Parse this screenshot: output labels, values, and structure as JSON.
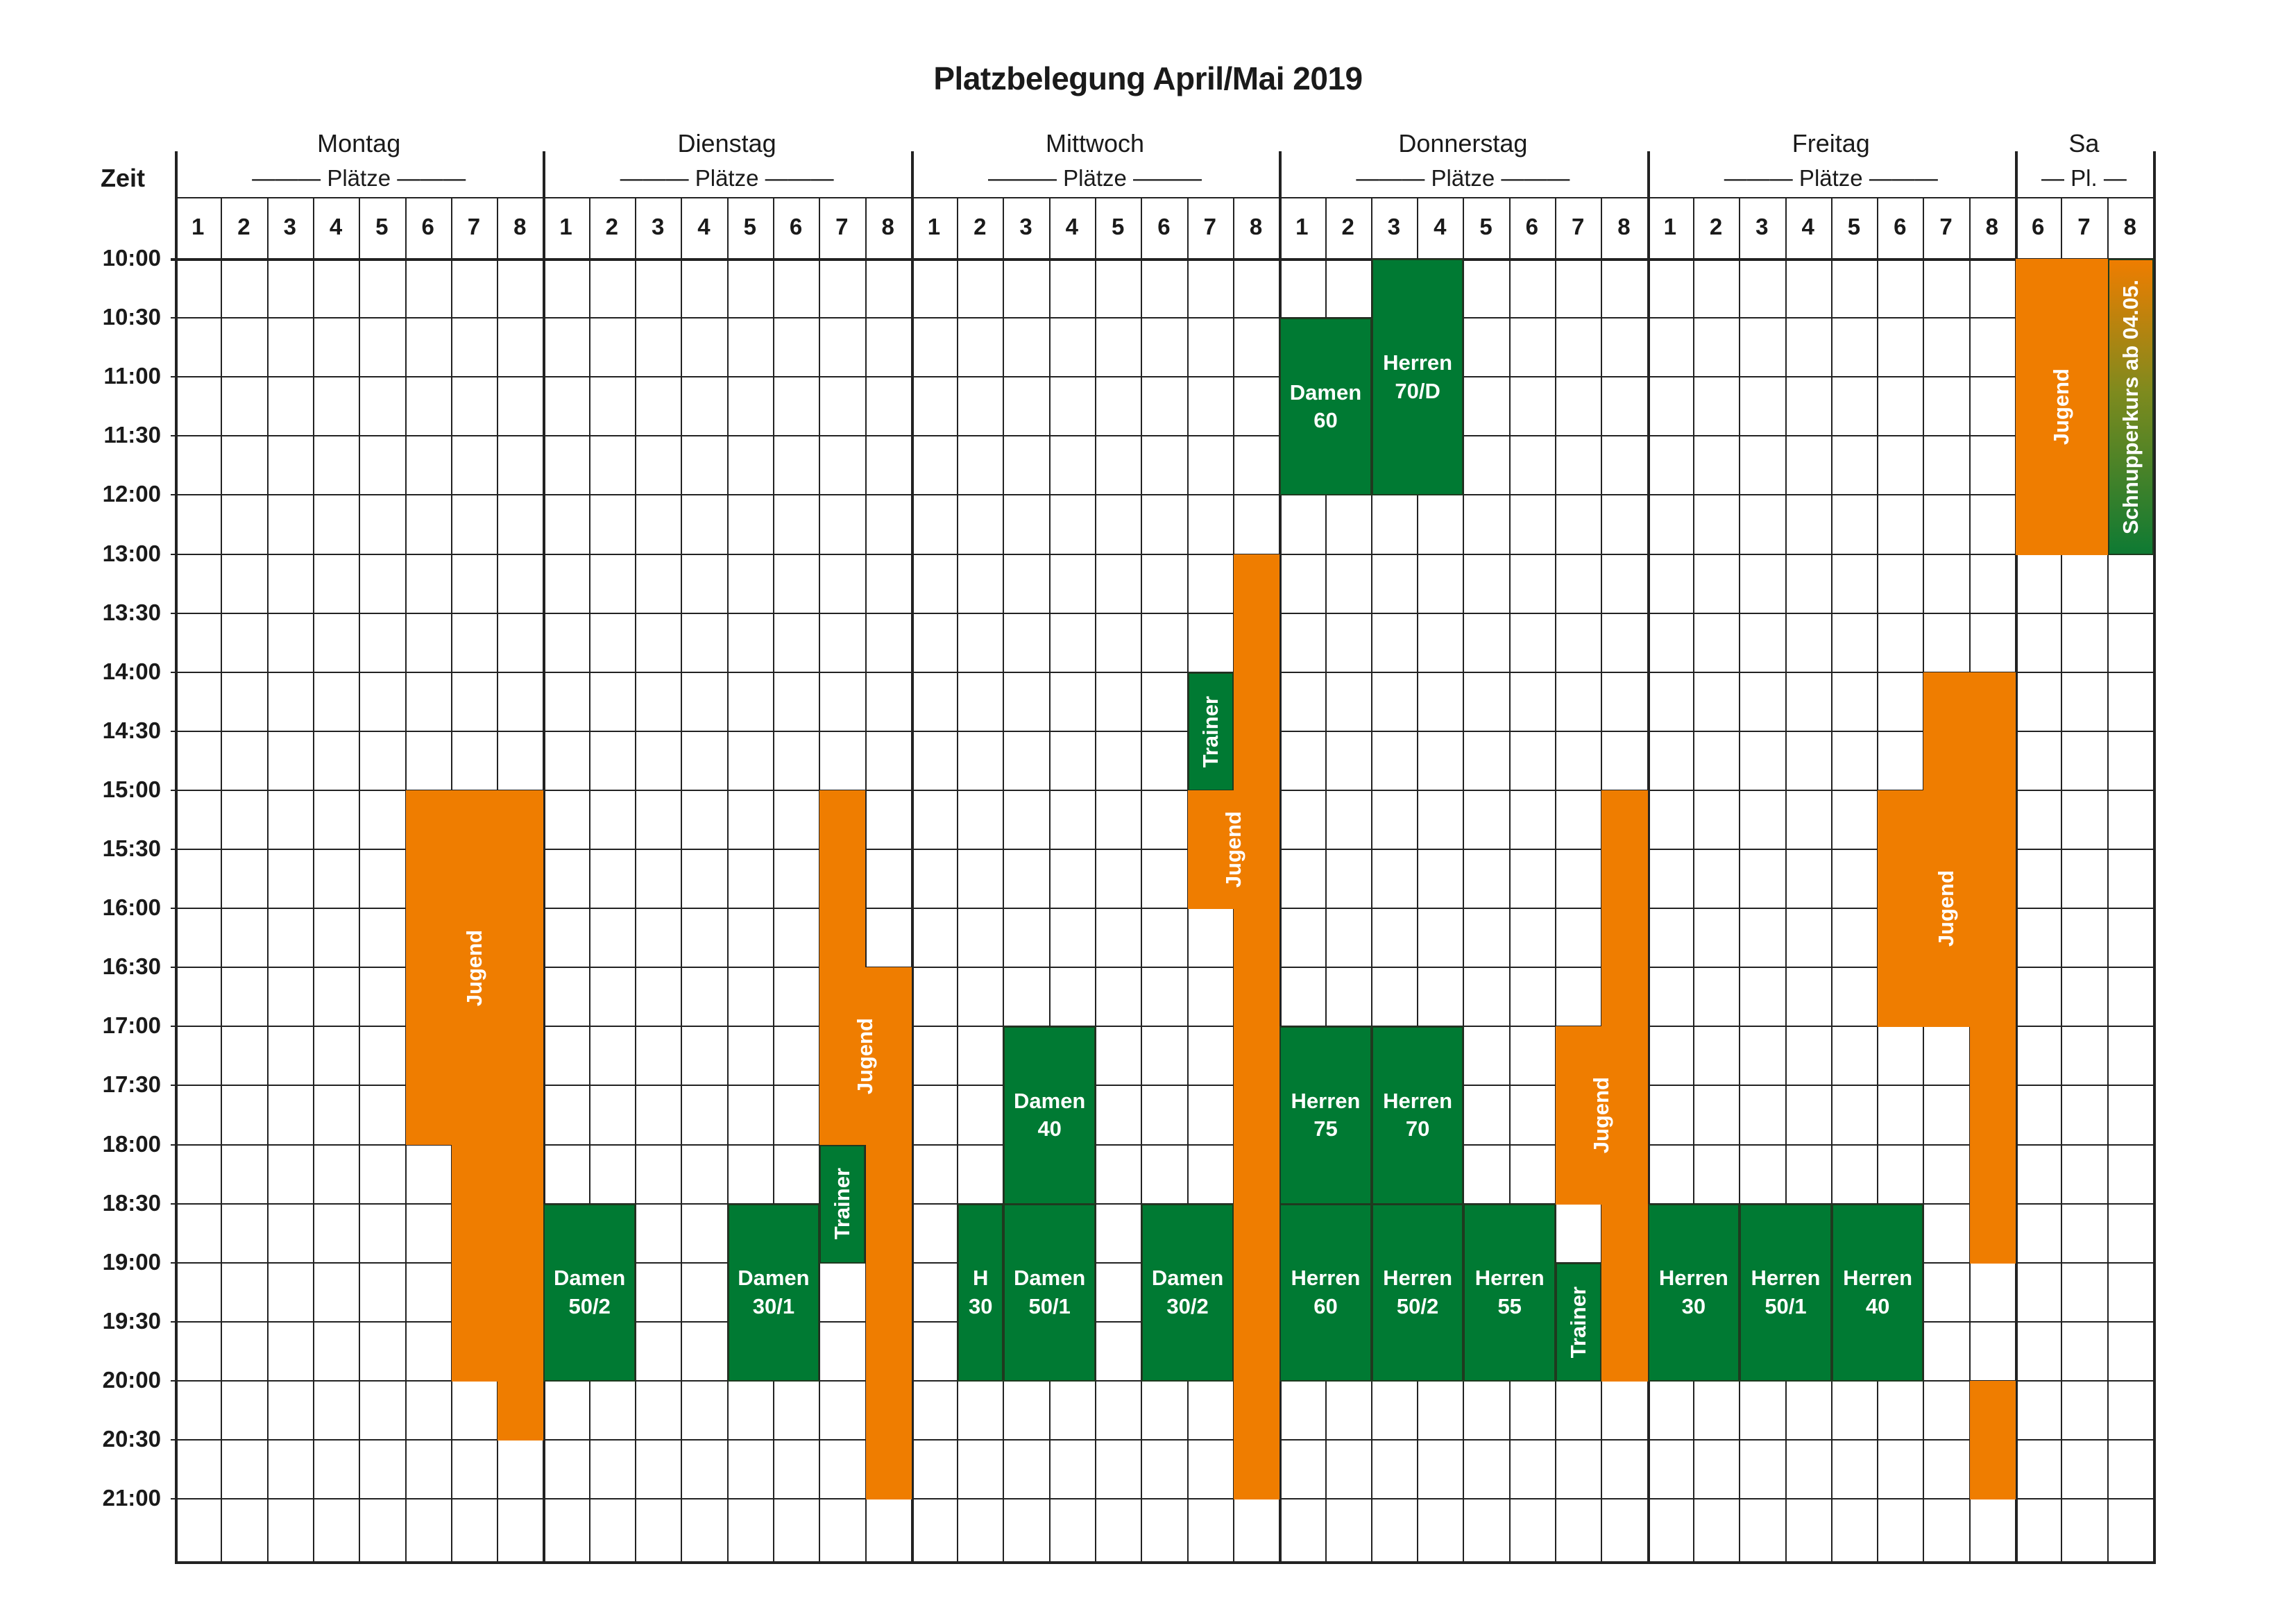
{
  "title": "Platzbelegung April/Mai 2019",
  "zeit_label": "Zeit",
  "days": [
    {
      "name": "Montag",
      "sub": "——— Plätze ———",
      "courts": [
        "1",
        "2",
        "3",
        "4",
        "5",
        "6",
        "7",
        "8"
      ]
    },
    {
      "name": "Dienstag",
      "sub": "——— Plätze ———",
      "courts": [
        "1",
        "2",
        "3",
        "4",
        "5",
        "6",
        "7",
        "8"
      ]
    },
    {
      "name": "Mittwoch",
      "sub": "——— Plätze ———",
      "courts": [
        "1",
        "2",
        "3",
        "4",
        "5",
        "6",
        "7",
        "8"
      ]
    },
    {
      "name": "Donnerstag",
      "sub": "——— Plätze ———",
      "courts": [
        "1",
        "2",
        "3",
        "4",
        "5",
        "6",
        "7",
        "8"
      ]
    },
    {
      "name": "Freitag",
      "sub": "——— Plätze ———",
      "courts": [
        "1",
        "2",
        "3",
        "4",
        "5",
        "6",
        "7",
        "8"
      ]
    },
    {
      "name": "Sa",
      "sub": "— Pl. —",
      "courts": [
        "6",
        "7",
        "8"
      ]
    }
  ],
  "times": [
    "10:00",
    "10:30",
    "11:00",
    "11:30",
    "12:00",
    "13:00",
    "13:30",
    "14:00",
    "14:30",
    "15:00",
    "15:30",
    "16:00",
    "16:30",
    "17:00",
    "17:30",
    "18:00",
    "18:30",
    "19:00",
    "19:30",
    "20:00",
    "20:30",
    "21:00"
  ],
  "colors": {
    "orange": "#ef7d00",
    "green": "#007a33"
  },
  "bookings": [
    {
      "label": "Jugend",
      "day": 0,
      "court": 6,
      "span": 3,
      "start": "15:00",
      "end": "18:00",
      "color": "orange",
      "vertical": true
    },
    {
      "label": "",
      "day": 0,
      "court": 7,
      "span": 2,
      "start": "18:00",
      "end": "20:00",
      "color": "orange"
    },
    {
      "label": "",
      "day": 0,
      "court": 8,
      "span": 1,
      "start": "20:00",
      "end": "20:30",
      "color": "orange"
    },
    {
      "label": "Damen\n50/2",
      "day": 1,
      "court": 1,
      "span": 2,
      "start": "18:30",
      "end": "20:00",
      "color": "green"
    },
    {
      "label": "Damen\n30/1",
      "day": 1,
      "court": 5,
      "span": 2,
      "start": "18:30",
      "end": "20:00",
      "color": "green"
    },
    {
      "label": "",
      "day": 1,
      "court": 7,
      "span": 1,
      "start": "15:00",
      "end": "16:30",
      "color": "orange"
    },
    {
      "label": "Jugend",
      "day": 1,
      "court": 7,
      "span": 2,
      "start": "16:30",
      "end": "18:00",
      "color": "orange",
      "vertical": true
    },
    {
      "label": "",
      "day": 1,
      "court": 8,
      "span": 1,
      "start": "18:00",
      "end": "21:00",
      "color": "orange"
    },
    {
      "label": "Trainer",
      "day": 1,
      "court": 7,
      "span": 1,
      "start": "18:00",
      "end": "19:00",
      "color": "green",
      "vertical": true
    },
    {
      "label": "Damen\n40",
      "day": 2,
      "court": 3,
      "span": 2,
      "start": "17:00",
      "end": "18:30",
      "color": "green"
    },
    {
      "label": "H\n30",
      "day": 2,
      "court": 2,
      "span": 1,
      "start": "18:30",
      "end": "20:00",
      "color": "green"
    },
    {
      "label": "Damen\n50/1",
      "day": 2,
      "court": 3,
      "span": 2,
      "start": "18:30",
      "end": "20:00",
      "color": "green"
    },
    {
      "label": "Damen\n30/2",
      "day": 2,
      "court": 6,
      "span": 2,
      "start": "18:30",
      "end": "20:00",
      "color": "green"
    },
    {
      "label": "Trainer",
      "day": 2,
      "court": 7,
      "span": 1,
      "start": "14:00",
      "end": "15:00",
      "color": "green",
      "vertical": true
    },
    {
      "label": "",
      "day": 2,
      "court": 7,
      "span": 1,
      "start": "15:00",
      "end": "16:00",
      "color": "orange"
    },
    {
      "label": "",
      "day": 2,
      "court": 8,
      "span": 1,
      "start": "13:00",
      "end": "21:00",
      "color": "orange"
    },
    {
      "label": "Jugend",
      "day": 2,
      "court": 7,
      "span": 2,
      "start": "15:00",
      "end": "16:00",
      "color": "orange",
      "vertical": true
    },
    {
      "label": "Damen\n60",
      "day": 3,
      "court": 1,
      "span": 2,
      "start": "10:30",
      "end": "12:00",
      "color": "green"
    },
    {
      "label": "Herren\n70/D",
      "day": 3,
      "court": 3,
      "span": 2,
      "start": "10:00",
      "end": "12:00",
      "color": "green"
    },
    {
      "label": "Herren\n75",
      "day": 3,
      "court": 1,
      "span": 2,
      "start": "17:00",
      "end": "18:30",
      "color": "green"
    },
    {
      "label": "Herren\n70",
      "day": 3,
      "court": 3,
      "span": 2,
      "start": "17:00",
      "end": "18:30",
      "color": "green"
    },
    {
      "label": "Herren\n60",
      "day": 3,
      "court": 1,
      "span": 2,
      "start": "18:30",
      "end": "20:00",
      "color": "green"
    },
    {
      "label": "Herren\n50/2",
      "day": 3,
      "court": 3,
      "span": 2,
      "start": "18:30",
      "end": "20:00",
      "color": "green"
    },
    {
      "label": "Herren\n55",
      "day": 3,
      "court": 5,
      "span": 2,
      "start": "18:30",
      "end": "20:00",
      "color": "green"
    },
    {
      "label": "",
      "day": 3,
      "court": 8,
      "span": 1,
      "start": "15:00",
      "end": "17:00",
      "color": "orange"
    },
    {
      "label": "Jugend",
      "day": 3,
      "court": 7,
      "span": 2,
      "start": "17:00",
      "end": "18:30",
      "color": "orange",
      "vertical": true
    },
    {
      "label": "",
      "day": 3,
      "court": 8,
      "span": 1,
      "start": "18:30",
      "end": "20:00",
      "color": "orange"
    },
    {
      "label": "Trainer",
      "day": 3,
      "court": 7,
      "span": 1,
      "start": "19:00",
      "end": "20:00",
      "color": "green",
      "vertical": true
    },
    {
      "label": "Herren\n30",
      "day": 4,
      "court": 1,
      "span": 2,
      "start": "18:30",
      "end": "20:00",
      "color": "green"
    },
    {
      "label": "Herren\n50/1",
      "day": 4,
      "court": 3,
      "span": 2,
      "start": "18:30",
      "end": "20:00",
      "color": "green"
    },
    {
      "label": "Herren\n40",
      "day": 4,
      "court": 5,
      "span": 2,
      "start": "18:30",
      "end": "20:00",
      "color": "green"
    },
    {
      "label": "",
      "day": 4,
      "court": 7,
      "span": 2,
      "start": "14:00",
      "end": "15:00",
      "color": "orange"
    },
    {
      "label": "Jugend",
      "day": 4,
      "court": 6,
      "span": 3,
      "start": "15:00",
      "end": "17:00",
      "color": "orange",
      "vertical": true
    },
    {
      "label": "",
      "day": 4,
      "court": 8,
      "span": 1,
      "start": "17:00",
      "end": "19:00",
      "color": "orange"
    },
    {
      "label": "",
      "day": 4,
      "court": 8,
      "span": 1,
      "start": "20:00",
      "end": "21:00",
      "color": "orange"
    },
    {
      "label": "Jugend",
      "day": 5,
      "court": 6,
      "span": 2,
      "start": "10:00",
      "end": "13:00",
      "color": "orange",
      "vertical": true
    },
    {
      "label": "Schnupperkurs ab 04.05.",
      "day": 5,
      "court": 8,
      "span": 1,
      "start": "10:00",
      "end": "13:00",
      "color": "gradient",
      "vertical": true
    }
  ]
}
